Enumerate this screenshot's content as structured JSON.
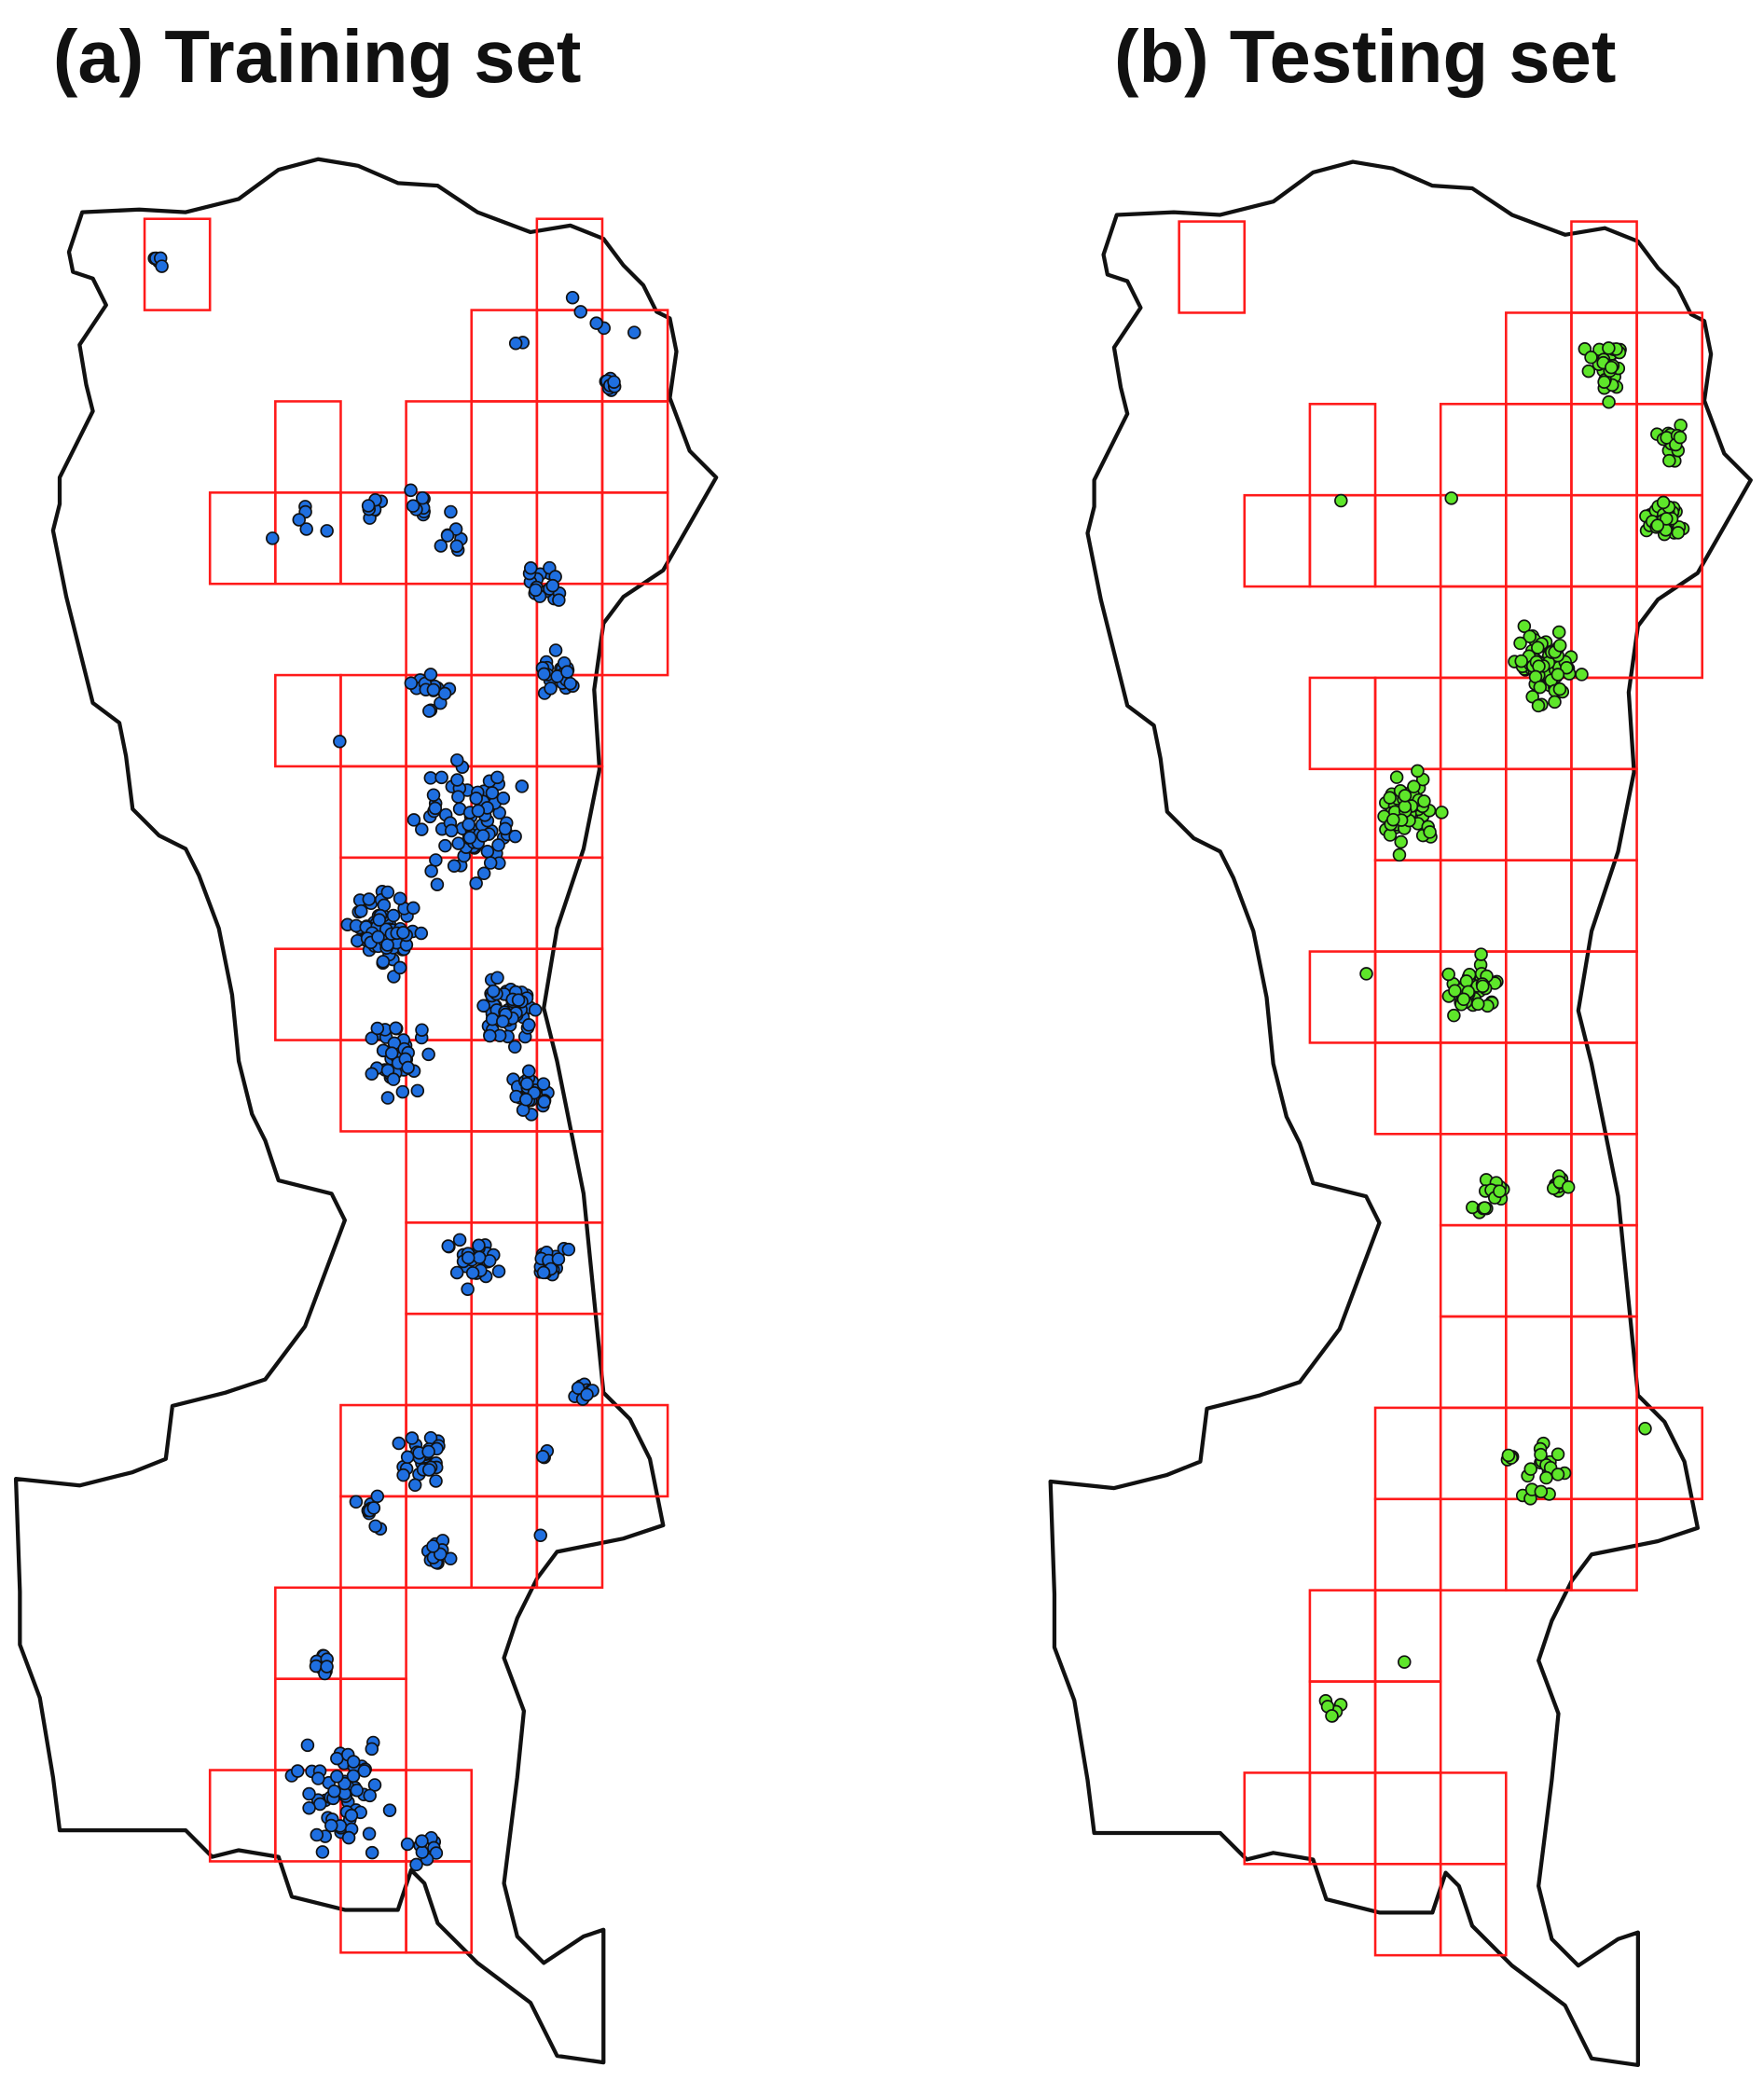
{
  "panels": [
    {
      "id": "training",
      "title": "(a) Training set",
      "point_color": "#1f6fe0"
    },
    {
      "id": "testing",
      "title": "(b) Testing set",
      "point_color": "#5ee62a"
    }
  ],
  "colors": {
    "grid": "#ff1a1a",
    "boundary": "#111111",
    "background": "#ffffff"
  }
}
